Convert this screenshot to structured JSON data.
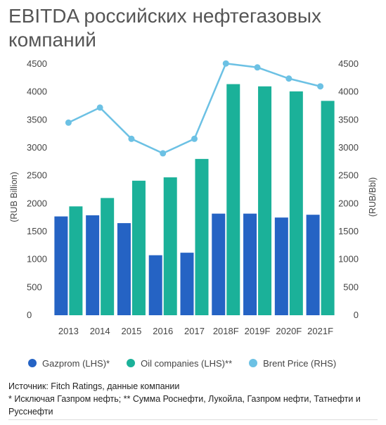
{
  "title": "EBITDA российских нефтегазовых компаний",
  "chart_data": {
    "type": "bar",
    "categories": [
      "2013",
      "2014",
      "2015",
      "2016",
      "2017",
      "2018F",
      "2019F",
      "2020F",
      "2021F"
    ],
    "series": [
      {
        "name": "Gazprom (LHS)*",
        "type": "bar",
        "axis": "left",
        "color": "#2563c4",
        "values": [
          1770,
          1790,
          1650,
          1075,
          1120,
          1820,
          1820,
          1750,
          1800
        ]
      },
      {
        "name": "Oil companies (LHS)**",
        "type": "bar",
        "axis": "left",
        "color": "#1bb199",
        "values": [
          1950,
          2100,
          2410,
          2470,
          2800,
          4140,
          4100,
          4010,
          3840
        ]
      },
      {
        "name": "Brent Price (RHS)",
        "type": "line",
        "axis": "right",
        "color": "#6cc1e4",
        "values": [
          3450,
          3720,
          3160,
          2900,
          3160,
          4510,
          4440,
          4240,
          4100
        ]
      }
    ],
    "ylabel_left": "(RUB Billion)",
    "ylabel_right": "(RUB/Bbl)",
    "ylim_left": [
      0,
      4500
    ],
    "ylim_right": [
      0,
      4500
    ],
    "yticks_left": [
      "0",
      "500",
      "1000",
      "1500",
      "2000",
      "2500",
      "3000",
      "3500",
      "4000",
      "4500"
    ],
    "yticks_right": [
      "0",
      "500",
      "1000",
      "1500",
      "2000",
      "2500",
      "3000",
      "3500",
      "4000",
      "4500"
    ],
    "grid": false,
    "legend_position": "bottom"
  },
  "legend": {
    "items": [
      {
        "label": "Gazprom (LHS)*",
        "color": "#2563c4"
      },
      {
        "label": "Oil companies (LHS)**",
        "color": "#1bb199"
      },
      {
        "label": "Brent Price (RHS)",
        "color": "#6cc1e4"
      }
    ]
  },
  "footer": {
    "source": "Источник: Fitch Ratings, данные компании",
    "note": "* Исключая Газпром нефть; ** Сумма Роснефти, Лукойла, Газпром нефти, Татнефти и Русснефти"
  }
}
